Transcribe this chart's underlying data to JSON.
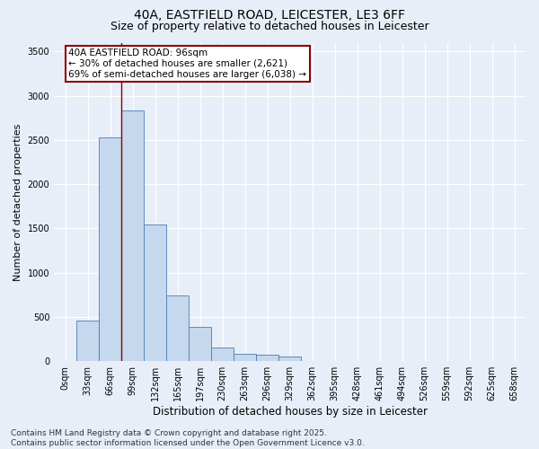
{
  "title_line1": "40A, EASTFIELD ROAD, LEICESTER, LE3 6FF",
  "title_line2": "Size of property relative to detached houses in Leicester",
  "xlabel": "Distribution of detached houses by size in Leicester",
  "ylabel": "Number of detached properties",
  "categories": [
    "0sqm",
    "33sqm",
    "66sqm",
    "99sqm",
    "132sqm",
    "165sqm",
    "197sqm",
    "230sqm",
    "263sqm",
    "296sqm",
    "329sqm",
    "362sqm",
    "395sqm",
    "428sqm",
    "461sqm",
    "494sqm",
    "526sqm",
    "559sqm",
    "592sqm",
    "625sqm",
    "658sqm"
  ],
  "values": [
    5,
    460,
    2530,
    2830,
    1540,
    740,
    390,
    150,
    80,
    70,
    50,
    0,
    0,
    0,
    0,
    0,
    0,
    0,
    0,
    0,
    0
  ],
  "bar_color": "#c5d8ed",
  "bar_edge_color": "#4a7db5",
  "vline_x": 2.5,
  "vline_color": "#8b0000",
  "annotation_text": "40A EASTFIELD ROAD: 96sqm\n← 30% of detached houses are smaller (2,621)\n69% of semi-detached houses are larger (6,038) →",
  "annotation_box_color": "#ffffff",
  "annotation_box_edge_color": "#8b0000",
  "annotation_fontsize": 7.5,
  "ylim": [
    0,
    3600
  ],
  "yticks": [
    0,
    500,
    1000,
    1500,
    2000,
    2500,
    3000,
    3500
  ],
  "bg_color": "#e8eef8",
  "plot_bg_color": "#e8eef8",
  "footer_text": "Contains HM Land Registry data © Crown copyright and database right 2025.\nContains public sector information licensed under the Open Government Licence v3.0.",
  "grid_color": "#ffffff",
  "title_fontsize": 10,
  "subtitle_fontsize": 9,
  "xlabel_fontsize": 8.5,
  "ylabel_fontsize": 8,
  "footer_fontsize": 6.5,
  "tick_fontsize": 7
}
